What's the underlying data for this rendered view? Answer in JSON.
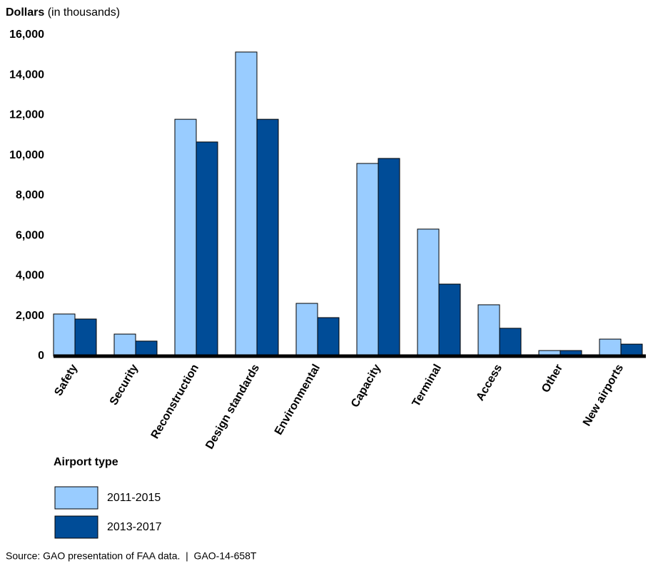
{
  "chart_data": {
    "type": "bar",
    "y_label": "Dollars",
    "y_label_unit": "(in thousands)",
    "categories": [
      "Safety",
      "Security",
      "Reconstruction",
      "Design standards",
      "Environmental",
      "Capacity",
      "Terminal",
      "Access",
      "Other",
      "New airports"
    ],
    "legend_title": "Airport type",
    "series": [
      {
        "name": "2011-2015",
        "color": "#99ccff",
        "values": [
          2100,
          1100,
          11800,
          15150,
          2630,
          9600,
          6330,
          2560,
          280,
          850
        ]
      },
      {
        "name": "2013-2017",
        "color": "#004c97",
        "values": [
          1850,
          750,
          10670,
          11800,
          1920,
          9850,
          3590,
          1390,
          280,
          600
        ]
      }
    ],
    "ylim": [
      0,
      16000
    ],
    "yticks": [
      0,
      {
        "value": 2000,
        "label": "2,000"
      },
      {
        "value": 4000,
        "label": "4,000"
      },
      {
        "value": 6000,
        "label": "6,000"
      },
      {
        "value": 8000,
        "label": "8,000"
      },
      {
        "value": 10000,
        "label": "10,000"
      },
      {
        "value": 12000,
        "label": "12,000"
      },
      {
        "value": 14000,
        "label": "14,000"
      },
      {
        "value": 16000,
        "label": "16,000"
      }
    ],
    "source": "Source: GAO presentation of FAA data.  |  GAO-14-658T"
  }
}
